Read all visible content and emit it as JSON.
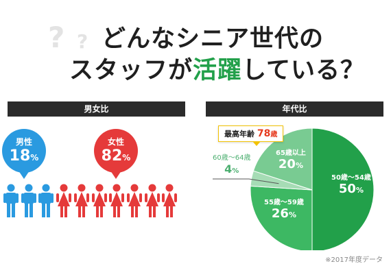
{
  "title": {
    "line1": "どんなシニア世代の",
    "line2_before": "スタッフが",
    "line2_highlight": "活躍",
    "line2_after": "している？",
    "qmark_big": "?",
    "qmark_small": "?"
  },
  "gender_section": {
    "header": "男女比",
    "male": {
      "label": "男性",
      "percent": "18",
      "unit": "%"
    },
    "female": {
      "label": "女性",
      "percent": "82",
      "unit": "%"
    },
    "icon_counts": {
      "male": 3,
      "female": 7
    }
  },
  "age_section": {
    "header": "年代比",
    "max_age": {
      "label": "最高年齢",
      "value": "78",
      "unit": "歳"
    }
  },
  "chart_data": {
    "type": "pie",
    "slices": [
      {
        "label": "50歳～54歳",
        "value": 50,
        "value_text": "50",
        "unit": "%",
        "color": "#22a04a"
      },
      {
        "label": "55歳～59歳",
        "value": 26,
        "value_text": "26",
        "unit": "%",
        "color": "#3db863"
      },
      {
        "label": "60歳～64歳",
        "value": 4,
        "value_text": "4",
        "unit": "%",
        "color": "#a6dcb5"
      },
      {
        "label": "65歳以上",
        "value": 20,
        "value_text": "20",
        "unit": "%",
        "color": "#79cb92"
      }
    ]
  },
  "colors": {
    "male": "#2a9ae0",
    "female": "#e53a3a",
    "accent": "#22a04a",
    "header_bar": "#2b2b2b"
  },
  "note": "※2017年度データ"
}
